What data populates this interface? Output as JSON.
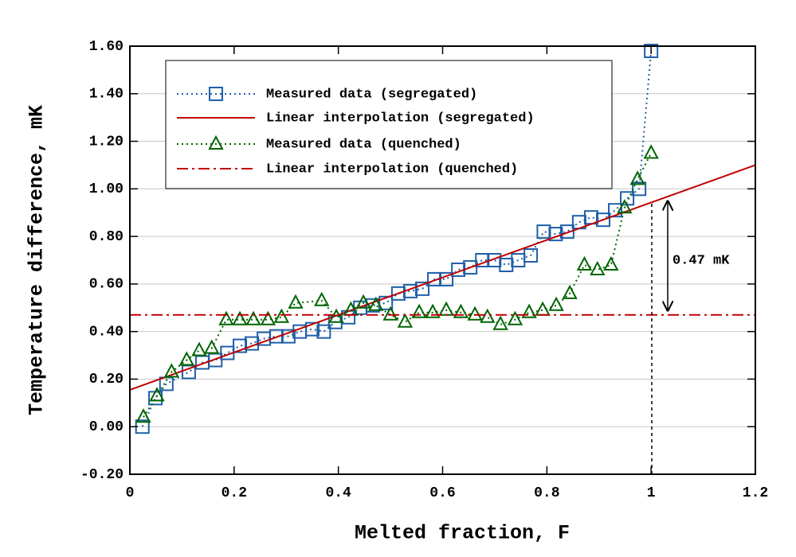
{
  "chart_data": {
    "type": "line",
    "xlabel": "Melted fraction, F",
    "ylabel": "Temperature difference, mK",
    "xlim": [
      0,
      1.2
    ],
    "ylim": [
      -0.2,
      1.6
    ],
    "xticks": [
      0,
      0.2,
      0.4,
      0.6,
      0.8,
      1,
      1.2
    ],
    "yticks": [
      {
        "value": -0.2,
        "label": "-0.20"
      },
      {
        "value": 0,
        "label": "0.00"
      },
      {
        "value": 0.2,
        "label": "0.20"
      },
      {
        "value": 0.4,
        "label": "0.40"
      },
      {
        "value": 0.6,
        "label": "0.60"
      },
      {
        "value": 0.8,
        "label": "0.80"
      },
      {
        "value": 1.0,
        "label": "1.00"
      },
      {
        "value": 1.2,
        "label": "1.20"
      },
      {
        "value": 1.4,
        "label": "1.40"
      },
      {
        "value": 1.6,
        "label": "1.60"
      }
    ],
    "grid": true,
    "legend": "upper left",
    "annotation": "0.47 mK",
    "series": [
      {
        "name": "Measured data (segregated)",
        "color": "#1f5fa8",
        "linestyle": "dotted",
        "marker": "square",
        "x": [
          0.024,
          0.049,
          0.07,
          0.113,
          0.139,
          0.164,
          0.187,
          0.211,
          0.234,
          0.257,
          0.281,
          0.304,
          0.326,
          0.35,
          0.372,
          0.394,
          0.419,
          0.442,
          0.466,
          0.491,
          0.515,
          0.538,
          0.561,
          0.584,
          0.607,
          0.63,
          0.653,
          0.676,
          0.699,
          0.722,
          0.745,
          0.769,
          0.794,
          0.817,
          0.839,
          0.862,
          0.885,
          0.908,
          0.931,
          0.954,
          0.977,
          1.0
        ],
        "values": [
          0,
          0.12,
          0.18,
          0.23,
          0.27,
          0.28,
          0.31,
          0.34,
          0.35,
          0.37,
          0.38,
          0.38,
          0.4,
          0.41,
          0.4,
          0.44,
          0.46,
          0.5,
          0.51,
          0.52,
          0.56,
          0.57,
          0.58,
          0.62,
          0.62,
          0.66,
          0.67,
          0.7,
          0.7,
          0.68,
          0.7,
          0.72,
          0.82,
          0.81,
          0.82,
          0.86,
          0.88,
          0.87,
          0.91,
          0.96,
          1.0,
          1.58
        ]
      },
      {
        "name": "Linear interpolation (segregated)",
        "color": "#c00000",
        "linestyle": "solid",
        "marker": null,
        "x": [
          0,
          1.2
        ],
        "values": [
          0.155,
          1.1
        ]
      },
      {
        "name": "Measured data (quenched)",
        "color": "#006400",
        "linestyle": "dotted",
        "marker": "triangle",
        "x": [
          0.026,
          0.052,
          0.08,
          0.109,
          0.133,
          0.157,
          0.185,
          0.211,
          0.237,
          0.265,
          0.291,
          0.318,
          0.368,
          0.396,
          0.424,
          0.448,
          0.472,
          0.5,
          0.528,
          0.555,
          0.581,
          0.607,
          0.635,
          0.662,
          0.686,
          0.711,
          0.739,
          0.766,
          0.792,
          0.818,
          0.844,
          0.872,
          0.897,
          0.923,
          0.949,
          0.974,
          1.0
        ],
        "values": [
          0.04,
          0.13,
          0.23,
          0.28,
          0.32,
          0.33,
          0.45,
          0.45,
          0.45,
          0.45,
          0.46,
          0.52,
          0.53,
          0.46,
          0.49,
          0.52,
          0.51,
          0.47,
          0.44,
          0.48,
          0.48,
          0.49,
          0.48,
          0.47,
          0.46,
          0.43,
          0.45,
          0.48,
          0.49,
          0.51,
          0.56,
          0.68,
          0.66,
          0.68,
          0.92,
          1.04,
          1.15
        ]
      },
      {
        "name": "Linear interpolation (quenched)",
        "color": "#c00000",
        "linestyle": "dashdot",
        "marker": null,
        "x": [
          0,
          1.2
        ],
        "values": [
          0.47,
          0.47
        ]
      }
    ]
  }
}
